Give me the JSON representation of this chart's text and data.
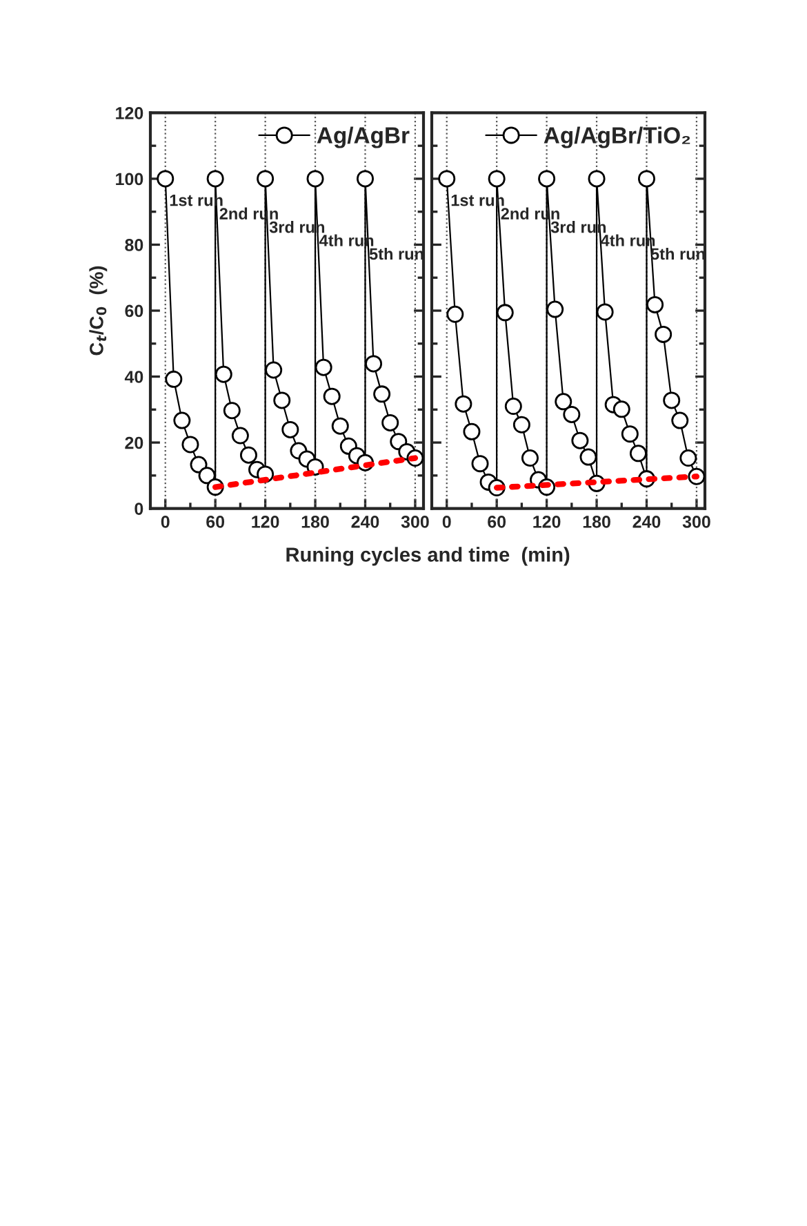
{
  "chart_data": [
    {
      "type": "line",
      "xlabel": "Runing cycles and time  (min)",
      "ylabel": "C$_{t}$/C$_{0}$  (%)",
      "xlim": [
        -18,
        310
      ],
      "xticks": [
        0,
        60,
        120,
        180,
        240,
        300
      ],
      "ylim": [
        0,
        120
      ],
      "yticks": [
        0,
        20,
        40,
        60,
        80,
        100,
        120
      ],
      "legend": "top right",
      "marker": "circle",
      "grid": false,
      "series": [
        {
          "name": "Ag/AgBr",
          "color": "#000000",
          "x": [
            0,
            10,
            20,
            30,
            40,
            50,
            60,
            60,
            70,
            80,
            90,
            100,
            110,
            120,
            120,
            130,
            140,
            150,
            160,
            170,
            180,
            180,
            190,
            200,
            210,
            220,
            230,
            240,
            240,
            250,
            260,
            270,
            280,
            290,
            300
          ],
          "values": [
            100,
            39.2,
            26.7,
            19.4,
            13.3,
            10,
            6.5,
            100,
            40.7,
            29.7,
            22.1,
            16.2,
            11.8,
            10.4,
            100,
            42,
            32.8,
            23.9,
            17.5,
            15,
            12.6,
            100,
            42.8,
            34,
            25,
            18.9,
            16,
            13.9,
            100,
            43.9,
            34.7,
            26,
            20.3,
            17.2,
            15.3
          ]
        },
        {
          "type": "line",
          "color": "#ff0000",
          "line_style": "dotted",
          "marker": "none",
          "x": [
            60,
            300
          ],
          "values": [
            6.5,
            15.3
          ]
        }
      ],
      "ref_lines": [
        {
          "axis": "x",
          "value": 0,
          "color": "#555555",
          "line_style": "dotted"
        },
        {
          "axis": "x",
          "value": 60,
          "color": "#555555",
          "line_style": "dotted"
        },
        {
          "axis": "x",
          "value": 120,
          "color": "#555555",
          "line_style": "dotted"
        },
        {
          "axis": "x",
          "value": 180,
          "color": "#555555",
          "line_style": "dotted"
        },
        {
          "axis": "x",
          "value": 240,
          "color": "#555555",
          "line_style": "dotted"
        },
        {
          "axis": "x",
          "value": 300,
          "color": "#555555",
          "line_style": "dotted"
        }
      ],
      "annotations": [
        "1st run",
        "2nd run",
        "3rd run",
        "4th run",
        "5th run"
      ]
    },
    {
      "type": "line",
      "xlim": [
        -18,
        310
      ],
      "xticks": [
        0,
        60,
        120,
        180,
        240,
        300
      ],
      "ylim": [
        0,
        120
      ],
      "yticks": [
        0,
        20,
        40,
        60,
        80,
        100,
        120
      ],
      "tick_labels": "x",
      "legend": "top right",
      "marker": "circle",
      "grid": false,
      "series": [
        {
          "name": "Ag/AgBr/TiO₂",
          "color": "#000000",
          "x": [
            0,
            10,
            20,
            30,
            40,
            50,
            60,
            60,
            70,
            80,
            90,
            100,
            110,
            120,
            120,
            130,
            140,
            150,
            160,
            170,
            180,
            180,
            190,
            200,
            210,
            220,
            230,
            240,
            240,
            250,
            260,
            270,
            280,
            290,
            300
          ],
          "values": [
            100,
            58.9,
            31.7,
            23.3,
            13.6,
            8,
            6.3,
            100,
            59.4,
            31,
            25.4,
            15.3,
            8.7,
            6.5,
            100,
            60.4,
            32.4,
            28.5,
            20.6,
            15.6,
            7.6,
            100,
            59.6,
            31.5,
            30.1,
            22.6,
            16.7,
            9,
            100,
            61.8,
            52.8,
            32.8,
            26.7,
            15.3,
            9.7
          ]
        },
        {
          "type": "line",
          "color": "#ff0000",
          "line_style": "dotted",
          "marker": "none",
          "x": [
            60,
            300
          ],
          "values": [
            6.3,
            9.7
          ]
        }
      ],
      "ref_lines": [
        {
          "axis": "x",
          "value": 0,
          "color": "#555555",
          "line_style": "dotted"
        },
        {
          "axis": "x",
          "value": 60,
          "color": "#555555",
          "line_style": "dotted"
        },
        {
          "axis": "x",
          "value": 120,
          "color": "#555555",
          "line_style": "dotted"
        },
        {
          "axis": "x",
          "value": 180,
          "color": "#555555",
          "line_style": "dotted"
        },
        {
          "axis": "x",
          "value": 240,
          "color": "#555555",
          "line_style": "dotted"
        },
        {
          "axis": "x",
          "value": 300,
          "color": "#555555",
          "line_style": "dotted"
        }
      ],
      "annotations": [
        "1st run",
        "2nd run",
        "3rd run",
        "4th run",
        "5th run"
      ]
    }
  ]
}
